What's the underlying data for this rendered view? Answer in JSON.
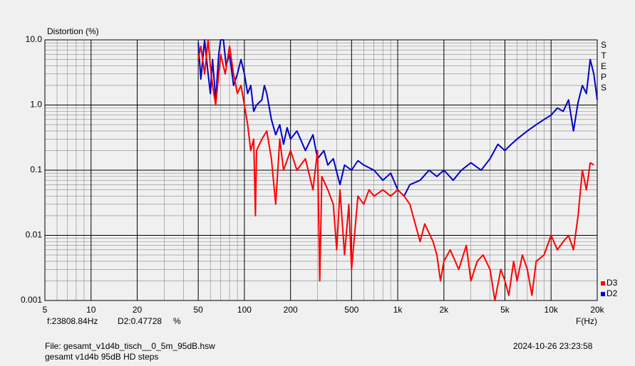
{
  "chart_data": {
    "type": "line",
    "y_label": "Distortion (%)",
    "x_label": "F(Hz)",
    "side_label": "STEPS",
    "log_x": true,
    "log_y": true,
    "grid": true,
    "legend": "lower right",
    "xlim": [
      5,
      20000
    ],
    "ylim": [
      0.001,
      10
    ],
    "xticks": [
      5,
      10,
      20,
      50,
      100,
      200,
      500,
      {
        "value": 1000,
        "label": "1k"
      },
      {
        "value": 2000,
        "label": "2k"
      },
      {
        "value": 5000,
        "label": "5k"
      },
      {
        "value": 10000,
        "label": "10k"
      },
      {
        "value": 20000,
        "label": "20k"
      }
    ],
    "yticks": [
      0.001,
      0.01,
      0.1,
      {
        "value": 1,
        "label": "1.0"
      },
      {
        "value": 10,
        "label": "10.0"
      }
    ],
    "cursor_freq": "f:23808.84Hz",
    "cursor_value": "D2:0.47728",
    "cursor_unit": "%",
    "file": "File: gesamt_v1d4b_tisch__0_5m_95dB.hsw",
    "description": "gesamt v1d4b 95dB HD steps",
    "timestamp": "2024-10-26 23:23:58",
    "series": [
      {
        "name": "D3",
        "color": "#ff0000",
        "x": [
          50,
          52,
          55,
          58,
          60,
          62,
          65,
          70,
          75,
          80,
          85,
          90,
          95,
          100,
          105,
          110,
          115,
          118,
          120,
          130,
          140,
          150,
          160,
          170,
          180,
          200,
          220,
          250,
          280,
          300,
          310,
          320,
          350,
          380,
          400,
          420,
          450,
          480,
          500,
          550,
          600,
          650,
          700,
          800,
          900,
          1000,
          1100,
          1200,
          1300,
          1400,
          1500,
          1700,
          1800,
          1900,
          2000,
          2200,
          2500,
          2800,
          3000,
          3300,
          3600,
          4000,
          4300,
          4700,
          5000,
          5300,
          5700,
          6000,
          6500,
          7000,
          7500,
          8000,
          9000,
          10000,
          11000,
          12000,
          13000,
          14000,
          15000,
          16000,
          17000,
          18000,
          19000
        ],
        "values": [
          5,
          8,
          3,
          10,
          4,
          2,
          1,
          6,
          3,
          8,
          3,
          1.5,
          2,
          1,
          0.5,
          0.2,
          0.3,
          0.02,
          0.2,
          0.3,
          0.4,
          0.15,
          0.03,
          0.3,
          0.1,
          0.2,
          0.1,
          0.15,
          0.05,
          0.2,
          0.002,
          0.08,
          0.05,
          0.03,
          0.006,
          0.05,
          0.005,
          0.03,
          0.003,
          0.04,
          0.03,
          0.05,
          0.04,
          0.05,
          0.04,
          0.05,
          0.04,
          0.03,
          0.015,
          0.008,
          0.015,
          0.008,
          0.005,
          0.002,
          0.004,
          0.006,
          0.003,
          0.007,
          0.002,
          0.004,
          0.005,
          0.003,
          0.001,
          0.003,
          0.002,
          0.0012,
          0.004,
          0.002,
          0.005,
          0.003,
          0.0012,
          0.004,
          0.005,
          0.01,
          0.006,
          0.008,
          0.01,
          0.006,
          0.02,
          0.1,
          0.05,
          0.13,
          0.12
        ]
      },
      {
        "name": "D2",
        "color": "#0000cc",
        "x": [
          50,
          52,
          55,
          58,
          60,
          62,
          65,
          68,
          70,
          73,
          76,
          80,
          85,
          90,
          95,
          100,
          105,
          110,
          115,
          120,
          130,
          135,
          140,
          150,
          160,
          170,
          180,
          190,
          200,
          220,
          250,
          280,
          300,
          330,
          350,
          380,
          420,
          450,
          500,
          550,
          600,
          700,
          800,
          900,
          1000,
          1100,
          1200,
          1400,
          1600,
          1800,
          2000,
          2300,
          2600,
          3000,
          3500,
          4000,
          4500,
          5000,
          5500,
          6000,
          7000,
          8000,
          9000,
          10000,
          11000,
          12000,
          13000,
          14000,
          15000,
          16000,
          17000,
          18000,
          19000,
          20000
        ],
        "values": [
          9,
          2.5,
          10,
          3,
          1.5,
          5,
          1.2,
          6,
          10,
          10,
          4,
          6,
          2,
          3,
          5,
          3,
          1.5,
          2,
          0.8,
          1,
          1.2,
          2,
          1.5,
          0.6,
          0.35,
          0.5,
          0.25,
          0.45,
          0.3,
          0.4,
          0.2,
          0.35,
          0.15,
          0.2,
          0.12,
          0.15,
          0.06,
          0.12,
          0.1,
          0.14,
          0.12,
          0.1,
          0.07,
          0.09,
          0.05,
          0.04,
          0.06,
          0.07,
          0.1,
          0.08,
          0.1,
          0.07,
          0.1,
          0.13,
          0.1,
          0.15,
          0.25,
          0.2,
          0.25,
          0.3,
          0.4,
          0.5,
          0.6,
          0.7,
          0.9,
          0.8,
          1.2,
          0.4,
          1.1,
          2,
          1.5,
          5,
          3,
          1.2
        ]
      }
    ]
  }
}
